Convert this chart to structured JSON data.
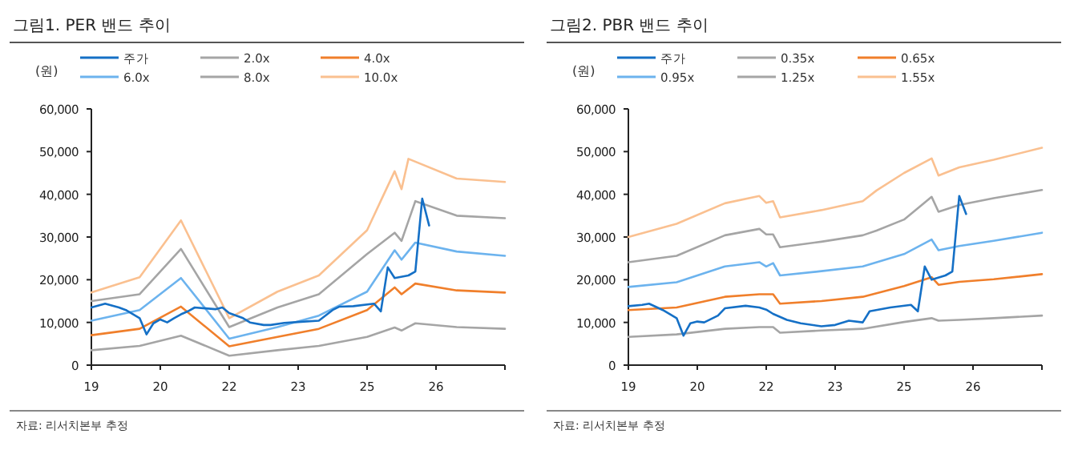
{
  "chart_data": [
    {
      "type": "line",
      "title": "그림1.   PER 밴드 추이",
      "ylabel": "(원)",
      "legend": "top left",
      "categories": [
        "19",
        null,
        null,
        null,
        null,
        null,
        null,
        null,
        null,
        null,
        "20",
        null,
        null,
        null,
        null,
        null,
        null,
        null,
        null,
        null,
        "22",
        null,
        null,
        null,
        null,
        null,
        null,
        null,
        null,
        null,
        "23",
        null,
        null,
        null,
        null,
        null,
        null,
        null,
        null,
        null,
        "25",
        null,
        null,
        null,
        null,
        null,
        null,
        null,
        null,
        null,
        "26",
        null,
        null,
        null,
        null,
        null,
        null,
        null,
        null,
        null,
        null
      ],
      "ylim": [
        0,
        60000
      ],
      "yticks": [
        0,
        {
          "value": 10000,
          "label": "10,000"
        },
        {
          "value": 20000,
          "label": "20,000"
        },
        {
          "value": 30000,
          "label": "30,000"
        },
        {
          "value": 40000,
          "label": "40,000"
        },
        {
          "value": 50000,
          "label": "50,000"
        },
        {
          "value": 60000,
          "label": "60,000"
        }
      ],
      "annotations": [
        "자료: 리서치본부 추정"
      ],
      "series": [
        {
          "name": "2.0x",
          "color": "#a5a5a5",
          "values": [
            3500,
            null,
            null,
            null,
            null,
            null,
            null,
            4500,
            null,
            null,
            null,
            null,
            null,
            6900,
            null,
            null,
            null,
            null,
            null,
            null,
            2200,
            null,
            null,
            null,
            null,
            null,
            null,
            3500,
            null,
            null,
            null,
            null,
            null,
            4500,
            null,
            null,
            null,
            null,
            null,
            null,
            6600,
            null,
            null,
            null,
            8800,
            8100,
            null,
            9800,
            null,
            null,
            null,
            null,
            null,
            8900,
            null,
            null,
            null,
            null,
            null,
            null,
            8500
          ]
        },
        {
          "name": "4.0x",
          "color": "#f07f2b",
          "values": [
            7000,
            null,
            null,
            null,
            null,
            null,
            null,
            8500,
            null,
            null,
            null,
            null,
            null,
            13700,
            null,
            null,
            null,
            null,
            null,
            null,
            4400,
            null,
            null,
            null,
            null,
            null,
            null,
            6600,
            null,
            null,
            null,
            null,
            null,
            8500,
            null,
            null,
            null,
            null,
            null,
            null,
            12900,
            null,
            null,
            null,
            18200,
            16600,
            null,
            19100,
            null,
            null,
            null,
            null,
            null,
            17500,
            null,
            null,
            null,
            null,
            null,
            null,
            17000
          ]
        },
        {
          "name": "6.0x",
          "color": "#6cb3ee",
          "values": [
            10400,
            null,
            null,
            null,
            null,
            null,
            null,
            12900,
            null,
            null,
            null,
            null,
            null,
            20400,
            null,
            null,
            null,
            null,
            null,
            null,
            6200,
            null,
            null,
            null,
            null,
            null,
            null,
            8900,
            null,
            null,
            null,
            null,
            null,
            11600,
            null,
            null,
            null,
            null,
            null,
            null,
            17200,
            null,
            null,
            null,
            26900,
            24700,
            null,
            28700,
            null,
            null,
            null,
            null,
            null,
            26600,
            null,
            null,
            null,
            null,
            null,
            null,
            25600
          ]
        },
        {
          "name": "8.0x",
          "color": "#a5a5a5",
          "values": [
            15000,
            null,
            null,
            null,
            null,
            null,
            null,
            16600,
            null,
            null,
            null,
            null,
            null,
            27200,
            null,
            null,
            null,
            null,
            null,
            null,
            8900,
            null,
            null,
            null,
            null,
            null,
            null,
            13500,
            null,
            null,
            null,
            null,
            null,
            16600,
            null,
            null,
            null,
            null,
            null,
            null,
            26000,
            null,
            null,
            null,
            31000,
            29100,
            null,
            38400,
            null,
            null,
            null,
            null,
            null,
            35000,
            null,
            null,
            null,
            null,
            null,
            null,
            34400
          ]
        },
        {
          "name": "10.0x",
          "color": "#fac090",
          "values": [
            17000,
            null,
            null,
            null,
            null,
            null,
            null,
            20600,
            null,
            null,
            null,
            null,
            null,
            33900,
            null,
            null,
            null,
            null,
            null,
            null,
            11000,
            null,
            null,
            null,
            null,
            null,
            null,
            17200,
            null,
            null,
            null,
            null,
            null,
            21000,
            null,
            null,
            null,
            null,
            null,
            null,
            31600,
            null,
            38500,
            null,
            45400,
            41200,
            48300,
            null,
            null,
            null,
            null,
            null,
            null,
            43700,
            null,
            null,
            null,
            null,
            null,
            null,
            42900
          ]
        },
        {
          "name": "주가",
          "color": "#1570c6",
          "values": [
            13500,
            null,
            14400,
            null,
            13500,
            12900,
            null,
            11000,
            7200,
            9800,
            10700,
            10000,
            11000,
            11900,
            12600,
            13500,
            null,
            null,
            13100,
            13500,
            12200,
            null,
            11000,
            10000,
            null,
            9400,
            9400,
            null,
            9900,
            null,
            10100,
            null,
            null,
            10400,
            null,
            12900,
            13700,
            null,
            13800,
            null,
            null,
            14400,
            12600,
            22900,
            20400,
            null,
            21000,
            21900,
            39000,
            32700,
            null,
            null,
            null,
            null,
            null,
            null,
            null,
            null,
            null,
            null,
            null
          ]
        }
      ]
    },
    {
      "type": "line",
      "title": "그림2.   PBR 밴드 추이",
      "ylabel": "(원)",
      "legend": "top left",
      "categories": [
        "19",
        null,
        null,
        null,
        null,
        null,
        null,
        null,
        null,
        null,
        "20",
        null,
        null,
        null,
        null,
        null,
        null,
        null,
        null,
        null,
        "22",
        null,
        null,
        null,
        null,
        null,
        null,
        null,
        null,
        null,
        "23",
        null,
        null,
        null,
        null,
        null,
        null,
        null,
        null,
        null,
        "25",
        null,
        null,
        null,
        null,
        null,
        null,
        null,
        null,
        null,
        "26",
        null,
        null,
        null,
        null,
        null,
        null,
        null,
        null,
        null,
        null
      ],
      "ylim": [
        0,
        60000
      ],
      "yticks": [
        0,
        {
          "value": 10000,
          "label": "10,000"
        },
        {
          "value": 20000,
          "label": "20,000"
        },
        {
          "value": 30000,
          "label": "30,000"
        },
        {
          "value": 40000,
          "label": "40,000"
        },
        {
          "value": 50000,
          "label": "50,000"
        },
        {
          "value": 60000,
          "label": "60,000"
        }
      ],
      "annotations": [
        "자료: 리서치본부 추정"
      ],
      "series": [
        {
          "name": "0.35x",
          "color": "#a5a5a5",
          "values": [
            6600,
            null,
            null,
            null,
            null,
            null,
            null,
            7200,
            null,
            null,
            null,
            null,
            null,
            null,
            8500,
            null,
            null,
            null,
            null,
            8900,
            null,
            8900,
            7600,
            null,
            null,
            null,
            null,
            null,
            8100,
            null,
            null,
            null,
            null,
            null,
            8500,
            null,
            null,
            null,
            null,
            null,
            10100,
            null,
            null,
            null,
            11000,
            10400,
            null,
            null,
            10600,
            null,
            null,
            null,
            null,
            11000,
            null,
            null,
            null,
            null,
            null,
            null,
            11600
          ]
        },
        {
          "name": "0.65x",
          "color": "#f07f2b",
          "values": [
            12900,
            null,
            null,
            null,
            null,
            null,
            null,
            13500,
            null,
            null,
            null,
            null,
            null,
            null,
            16000,
            null,
            null,
            null,
            null,
            16600,
            null,
            16600,
            14400,
            null,
            null,
            null,
            null,
            null,
            15000,
            null,
            null,
            null,
            null,
            null,
            16000,
            null,
            null,
            null,
            null,
            null,
            18500,
            null,
            null,
            null,
            20600,
            18800,
            null,
            null,
            19500,
            null,
            null,
            null,
            null,
            20100,
            null,
            null,
            null,
            null,
            null,
            null,
            21300
          ]
        },
        {
          "name": "0.95x",
          "color": "#6cb3ee",
          "values": [
            18300,
            null,
            null,
            null,
            null,
            null,
            null,
            19400,
            null,
            null,
            null,
            null,
            null,
            null,
            23100,
            null,
            null,
            null,
            null,
            24100,
            23100,
            23900,
            21000,
            null,
            null,
            null,
            null,
            null,
            22000,
            null,
            null,
            null,
            null,
            null,
            23100,
            null,
            null,
            null,
            null,
            null,
            26000,
            null,
            null,
            null,
            29400,
            26900,
            null,
            null,
            27900,
            null,
            null,
            null,
            null,
            29100,
            null,
            null,
            null,
            null,
            null,
            null,
            31000
          ]
        },
        {
          "name": "1.25x",
          "color": "#a5a5a5",
          "values": [
            24100,
            null,
            null,
            null,
            null,
            null,
            null,
            25600,
            null,
            null,
            null,
            null,
            null,
            null,
            30400,
            null,
            null,
            null,
            null,
            31900,
            30600,
            30600,
            27600,
            null,
            null,
            null,
            null,
            null,
            28900,
            null,
            null,
            null,
            null,
            null,
            30400,
            null,
            31500,
            null,
            null,
            null,
            34100,
            null,
            null,
            null,
            39400,
            35900,
            null,
            null,
            37500,
            null,
            null,
            null,
            null,
            39100,
            null,
            null,
            null,
            null,
            null,
            null,
            41000
          ]
        },
        {
          "name": "1.55x",
          "color": "#fac090",
          "values": [
            30000,
            null,
            null,
            null,
            null,
            null,
            null,
            33100,
            null,
            null,
            null,
            null,
            null,
            null,
            37900,
            null,
            null,
            null,
            null,
            39600,
            38000,
            38400,
            34600,
            null,
            null,
            null,
            null,
            null,
            36300,
            null,
            null,
            null,
            null,
            null,
            38400,
            null,
            40900,
            null,
            null,
            null,
            45000,
            null,
            null,
            null,
            48400,
            44400,
            null,
            null,
            46300,
            null,
            null,
            null,
            null,
            48100,
            null,
            null,
            null,
            null,
            null,
            null,
            50900
          ]
        },
        {
          "name": "주가",
          "color": "#1570c6",
          "values": [
            13800,
            null,
            14100,
            14400,
            null,
            12900,
            null,
            11000,
            6900,
            9800,
            10200,
            10000,
            null,
            11600,
            13300,
            null,
            null,
            13900,
            null,
            13500,
            13000,
            12000,
            null,
            10600,
            null,
            9800,
            null,
            null,
            9100,
            null,
            9400,
            null,
            10400,
            null,
            10000,
            12600,
            null,
            null,
            13500,
            null,
            null,
            14100,
            12600,
            23100,
            20000,
            null,
            21000,
            21900,
            39600,
            35400,
            null,
            null,
            null,
            null,
            null,
            null,
            null,
            null,
            null,
            null,
            null
          ]
        }
      ]
    }
  ]
}
